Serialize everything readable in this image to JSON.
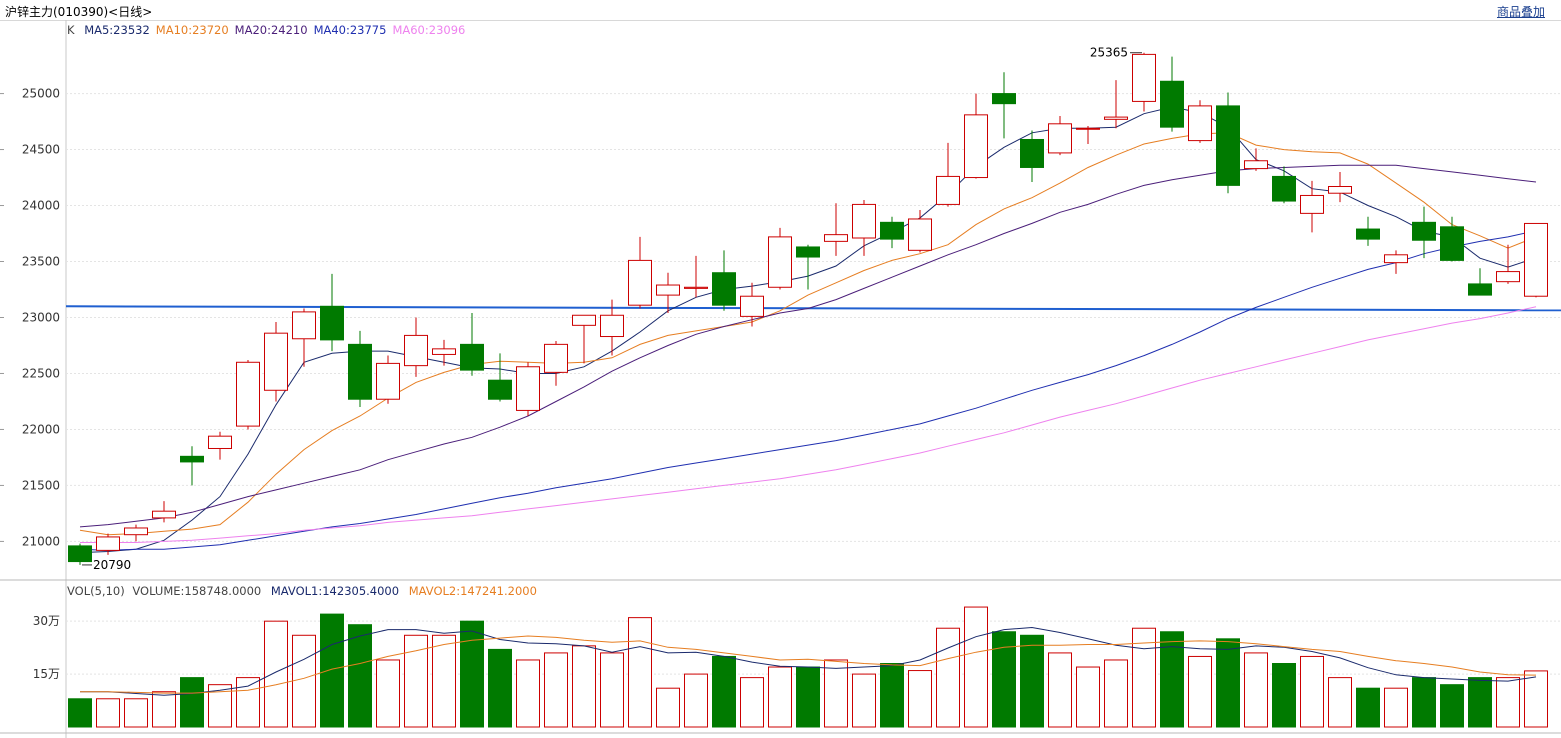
{
  "header": {
    "title": "沪锌主力(010390)<日线>",
    "compare_label": "商品叠加"
  },
  "price_panel": {
    "label": "K",
    "ma": [
      {
        "text": "MA5:23532",
        "color": "#1a2a6c"
      },
      {
        "text": "MA10:23720",
        "color": "#e67e22"
      },
      {
        "text": "MA20:24210",
        "color": "#4b1f7a"
      },
      {
        "text": "MA40:23775",
        "color": "#1f2fb0"
      },
      {
        "text": "MA60:23096",
        "color": "#ee82ee"
      }
    ],
    "high_label": "25365",
    "low_label": "20790"
  },
  "volume_panel": {
    "label": "VOL(5,10)",
    "volume_text": "VOLUME:158748.0000",
    "mavol1_text": "MAVOL1:142305.4000",
    "mavol2_text": "MAVOL2:147241.2000"
  },
  "chart_data": [
    {
      "type": "candlestick",
      "ylim": [
        20700,
        25550
      ],
      "yticks": [
        21000,
        21500,
        22000,
        22500,
        23000,
        23500,
        24000,
        24500,
        25000
      ],
      "up_color": "#cc0000",
      "down_color": "#007a00",
      "reference_line": 23100,
      "ohlc": [
        [
          20960,
          20980,
          20790,
          20820
        ],
        [
          20920,
          21070,
          20880,
          21040
        ],
        [
          21060,
          21150,
          21000,
          21120
        ],
        [
          21210,
          21360,
          21170,
          21270
        ],
        [
          21760,
          21850,
          21500,
          21710
        ],
        [
          21830,
          21980,
          21730,
          21940
        ],
        [
          22030,
          22620,
          22000,
          22600
        ],
        [
          22350,
          22960,
          22250,
          22860
        ],
        [
          22810,
          23080,
          22560,
          23050
        ],
        [
          23100,
          23390,
          22700,
          22800
        ],
        [
          22760,
          22880,
          22200,
          22270
        ],
        [
          22270,
          22660,
          22230,
          22590
        ],
        [
          22570,
          23000,
          22470,
          22840
        ],
        [
          22670,
          22800,
          22570,
          22720
        ],
        [
          22760,
          23040,
          22480,
          22530
        ],
        [
          22440,
          22680,
          22250,
          22270
        ],
        [
          22170,
          22600,
          22120,
          22560
        ],
        [
          22510,
          22790,
          22390,
          22760
        ],
        [
          22930,
          23020,
          22590,
          23020
        ],
        [
          22830,
          23160,
          22660,
          23020
        ],
        [
          23110,
          23720,
          23080,
          23510
        ],
        [
          23200,
          23400,
          23040,
          23290
        ],
        [
          23260,
          23550,
          23180,
          23270
        ],
        [
          23400,
          23600,
          23060,
          23110
        ],
        [
          23010,
          23310,
          22920,
          23190
        ],
        [
          23270,
          23800,
          23250,
          23720
        ],
        [
          23630,
          23650,
          23250,
          23540
        ],
        [
          23680,
          24020,
          23550,
          23740
        ],
        [
          23710,
          24050,
          23550,
          24010
        ],
        [
          23850,
          23900,
          23620,
          23700
        ],
        [
          23600,
          23960,
          23580,
          23880
        ],
        [
          24010,
          24560,
          23990,
          24260
        ],
        [
          24250,
          25000,
          24240,
          24810
        ],
        [
          25000,
          25190,
          24600,
          24910
        ],
        [
          24590,
          24670,
          24210,
          24340
        ],
        [
          24470,
          24800,
          24450,
          24730
        ],
        [
          24690,
          24710,
          24550,
          24690
        ],
        [
          24770,
          25120,
          24690,
          24790
        ],
        [
          24930,
          25365,
          24840,
          25350
        ],
        [
          25110,
          25330,
          24660,
          24700
        ],
        [
          24580,
          24940,
          24560,
          24890
        ],
        [
          24890,
          25010,
          24110,
          24180
        ],
        [
          24330,
          24510,
          24310,
          24400
        ],
        [
          24260,
          24350,
          24020,
          24040
        ],
        [
          23930,
          24220,
          23760,
          24090
        ],
        [
          24110,
          24300,
          24030,
          24170
        ],
        [
          23790,
          23900,
          23640,
          23700
        ],
        [
          23490,
          23600,
          23390,
          23560
        ],
        [
          23850,
          23990,
          23530,
          23690
        ],
        [
          23810,
          23900,
          23500,
          23510
        ],
        [
          23300,
          23440,
          23200,
          23200
        ],
        [
          23320,
          23650,
          23300,
          23410
        ],
        [
          23190,
          23840,
          23180,
          23840
        ]
      ],
      "series": [
        {
          "name": "MA5",
          "color": "#1a2a6c",
          "values": [
            20900,
            20910,
            20930,
            21010,
            21190,
            21400,
            21780,
            22220,
            22600,
            22680,
            22700,
            22700,
            22650,
            22600,
            22550,
            22540,
            22500,
            22500,
            22560,
            22700,
            22870,
            23060,
            23180,
            23250,
            23280,
            23320,
            23370,
            23460,
            23640,
            23760,
            23890,
            24100,
            24350,
            24520,
            24650,
            24690,
            24690,
            24700,
            24820,
            24880,
            24830,
            24700,
            24410,
            24310,
            24150,
            24120,
            24000,
            23900,
            23770,
            23720,
            23530,
            23450,
            23532
          ]
        },
        {
          "name": "MA10",
          "color": "#e67e22",
          "values": [
            21100,
            21060,
            21070,
            21090,
            21110,
            21150,
            21350,
            21600,
            21820,
            21990,
            22120,
            22280,
            22420,
            22510,
            22580,
            22610,
            22600,
            22590,
            22600,
            22640,
            22760,
            22840,
            22880,
            22920,
            22960,
            23060,
            23200,
            23310,
            23420,
            23510,
            23570,
            23650,
            23830,
            23970,
            24070,
            24200,
            24340,
            24450,
            24550,
            24600,
            24640,
            24650,
            24540,
            24500,
            24480,
            24470,
            24370,
            24200,
            24030,
            23830,
            23730,
            23620,
            23720
          ]
        },
        {
          "name": "MA20",
          "color": "#4b1f7a",
          "values": [
            21130,
            21150,
            21180,
            21210,
            21260,
            21330,
            21400,
            21460,
            21520,
            21580,
            21640,
            21730,
            21800,
            21870,
            21930,
            22020,
            22120,
            22250,
            22380,
            22520,
            22640,
            22750,
            22850,
            22920,
            22980,
            23040,
            23080,
            23160,
            23260,
            23360,
            23460,
            23560,
            23650,
            23750,
            23840,
            23940,
            24010,
            24100,
            24180,
            24230,
            24270,
            24310,
            24330,
            24340,
            24350,
            24360,
            24360,
            24360,
            24330,
            24300,
            24270,
            24240,
            24210
          ]
        },
        {
          "name": "MA40",
          "color": "#1f2fb0",
          "values": [
            20930,
            20920,
            20930,
            20930,
            20950,
            20970,
            21010,
            21050,
            21090,
            21130,
            21160,
            21200,
            21240,
            21290,
            21340,
            21390,
            21430,
            21480,
            21520,
            21560,
            21610,
            21660,
            21700,
            21740,
            21780,
            21820,
            21860,
            21900,
            21950,
            22000,
            22050,
            22120,
            22190,
            22270,
            22350,
            22420,
            22490,
            22570,
            22660,
            22760,
            22870,
            22990,
            23090,
            23180,
            23270,
            23350,
            23430,
            23490,
            23570,
            23630,
            23680,
            23720,
            23775
          ]
        },
        {
          "name": "MA60",
          "color": "#ee82ee",
          "values": [
            20990,
            20990,
            20990,
            21000,
            21010,
            21030,
            21050,
            21070,
            21100,
            21120,
            21140,
            21170,
            21190,
            21210,
            21230,
            21260,
            21290,
            21320,
            21350,
            21380,
            21410,
            21440,
            21470,
            21500,
            21530,
            21560,
            21600,
            21640,
            21690,
            21740,
            21790,
            21850,
            21910,
            21970,
            22040,
            22110,
            22170,
            22230,
            22300,
            22370,
            22440,
            22500,
            22560,
            22620,
            22680,
            22740,
            22800,
            22850,
            22900,
            22950,
            22990,
            23040,
            23096
          ]
        }
      ]
    },
    {
      "type": "bar",
      "ylim": [
        0,
        36
      ],
      "yticks": [
        15,
        30
      ],
      "ytick_labels": [
        "15万",
        "30万"
      ],
      "volume": [
        8,
        8,
        8,
        10,
        14,
        12,
        14,
        30,
        26,
        32,
        29,
        19,
        26,
        26,
        30,
        22,
        19,
        21,
        23,
        21,
        31,
        11,
        15,
        20,
        14,
        17,
        17,
        19,
        15,
        18,
        16,
        28,
        34,
        27,
        26,
        21,
        17,
        19,
        28,
        27,
        20,
        25,
        21,
        18,
        20,
        14,
        11,
        11,
        14,
        12,
        14,
        14,
        15.9
      ],
      "series": [
        {
          "name": "MAVOL1",
          "color": "#1a2a6c",
          "values": [
            10,
            10,
            9.5,
            9,
            9.5,
            10.4,
            11.6,
            15.6,
            19.2,
            23.4,
            25.8,
            27.6,
            27.6,
            26.6,
            27.2,
            24.8,
            23.8,
            23.6,
            23.0,
            21.2,
            22.8,
            21.0,
            21.2,
            20.0,
            18.4,
            17.2,
            17.0,
            16.6,
            17.0,
            17.4,
            19.0,
            22.4,
            25.6,
            27.6,
            28.2,
            26.8,
            25.0,
            23.2,
            22.2,
            22.8,
            22.2,
            22.0,
            23.0,
            22.6,
            21.4,
            19.6,
            16.8,
            14.8,
            14.0,
            13.6,
            13.2,
            13.0,
            14.2
          ]
        },
        {
          "name": "MAVOL2",
          "color": "#e67e22",
          "values": [
            10,
            10,
            9.8,
            9.6,
            9.6,
            10.0,
            10.4,
            12.0,
            13.8,
            16.4,
            18.0,
            20.0,
            21.6,
            23.4,
            24.6,
            25.2,
            25.8,
            25.4,
            24.6,
            24.0,
            24.4,
            22.6,
            22.0,
            21.0,
            20.0,
            19.0,
            19.2,
            18.6,
            18.0,
            17.6,
            17.4,
            19.4,
            21.2,
            22.6,
            23.2,
            23.2,
            23.4,
            23.4,
            23.8,
            24.2,
            24.4,
            24.2,
            23.6,
            22.8,
            22.0,
            21.4,
            20.0,
            18.8,
            18.0,
            17.0,
            15.6,
            14.8,
            14.7
          ]
        }
      ]
    }
  ]
}
